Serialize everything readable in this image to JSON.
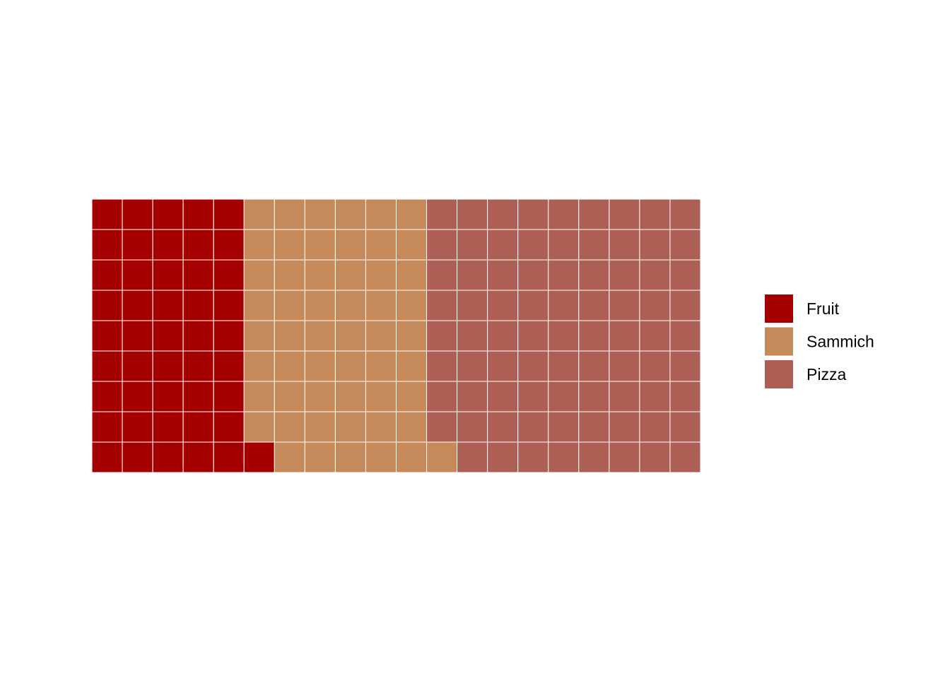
{
  "chart_data": {
    "type": "waffle",
    "rows": 9,
    "columns": 20,
    "fill_order": "column-major, bottom-to-top, left-to-right",
    "series": [
      {
        "name": "Fruit",
        "value": 46,
        "color": "#A50000"
      },
      {
        "name": "Sammich",
        "value": 54,
        "color": "#C68A5A"
      },
      {
        "name": "Pizza",
        "value": 80,
        "color": "#AD5F55"
      }
    ],
    "legend_position": "right",
    "grid": false,
    "tile_border_color": "#FFFFFF"
  }
}
